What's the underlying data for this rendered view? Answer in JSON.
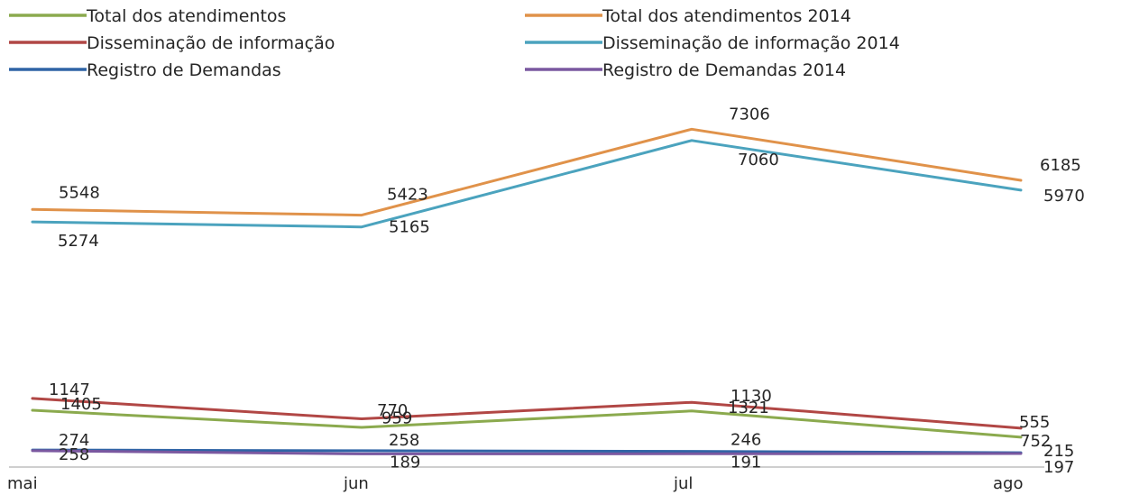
{
  "chart_data": {
    "type": "line",
    "categories": [
      "mai",
      "jun",
      "jul",
      "ago"
    ],
    "title": "",
    "xlabel": "",
    "ylabel": "",
    "ylim": [
      0,
      8000
    ],
    "grid": false,
    "legend_position": "top",
    "series": [
      {
        "name": "Total dos atendimentos",
        "values": [
          1147,
          770,
          1130,
          555
        ],
        "color": "#8BAA4E"
      },
      {
        "name": "Total dos atendimentos 2014",
        "values": [
          5548,
          5423,
          7306,
          6185
        ],
        "color": "#E0924A"
      },
      {
        "name": "Disseminação de informação",
        "values": [
          1405,
          959,
          1321,
          752
        ],
        "color": "#B14745"
      },
      {
        "name": "Disseminação de informação 2014",
        "values": [
          5274,
          5165,
          7060,
          5970
        ],
        "color": "#4BA3BE"
      },
      {
        "name": "Registro de Demandas",
        "values": [
          274,
          258,
          246,
          215
        ],
        "color": "#2F64A6"
      },
      {
        "name": "Registro de Demandas 2014",
        "values": [
          258,
          189,
          191,
          197
        ],
        "color": "#7A58A0"
      }
    ]
  }
}
